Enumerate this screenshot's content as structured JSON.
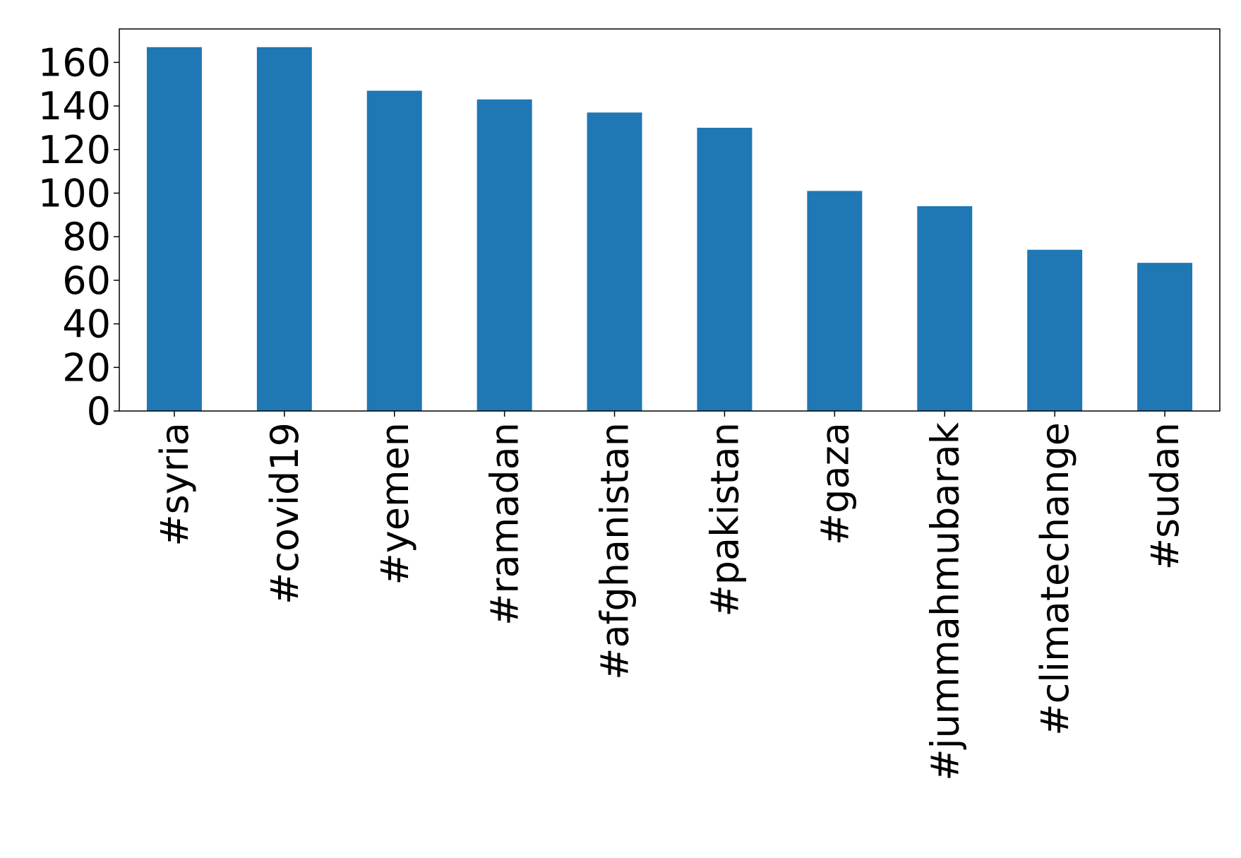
{
  "chart_data": {
    "type": "bar",
    "categories": [
      "#syria",
      "#covid19",
      "#yemen",
      "#ramadan",
      "#afghanistan",
      "#pakistan",
      "#gaza",
      "#jummahmubarak",
      "#climatechange",
      "#sudan"
    ],
    "values": [
      167,
      167,
      147,
      143,
      137,
      130,
      101,
      94,
      74,
      68
    ],
    "color": "#1f77b4",
    "ylim": [
      0,
      175.35
    ],
    "yticks": [
      0,
      20,
      40,
      60,
      80,
      100,
      120,
      140,
      160
    ],
    "grid": false
  }
}
